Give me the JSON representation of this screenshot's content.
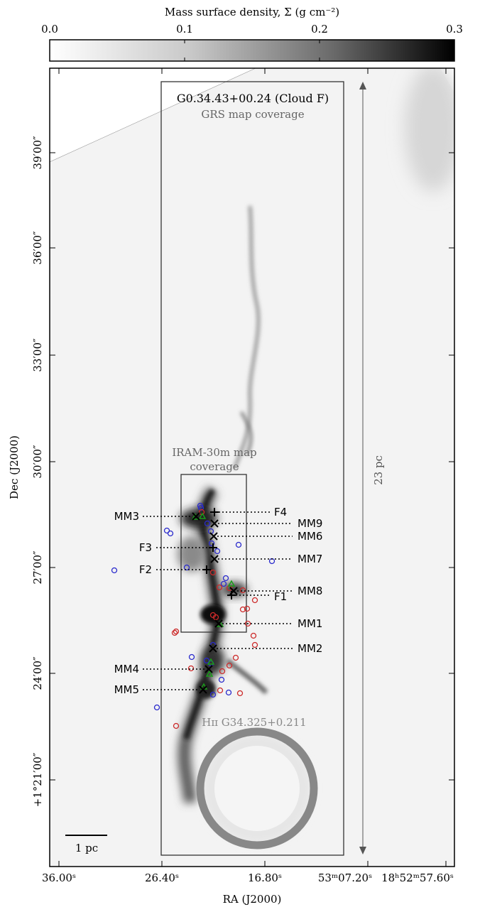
{
  "colorbar": {
    "label": "Mass surface density, Σ (g cm⁻²)",
    "ticks": [
      "0.0",
      "0.1",
      "0.2",
      "0.3"
    ],
    "range": [
      0.0,
      0.3
    ]
  },
  "axes": {
    "xlabel": "RA (J2000)",
    "ylabel": "Dec (J2000)",
    "xticks": [
      "36.00ˢ",
      "26.40ˢ",
      "16.80ˢ",
      "53ᵐ07.20ˢ",
      "18ʰ52ᵐ57.60ˢ"
    ],
    "yticks": [
      "39′00″",
      "36′00″",
      "33′00″",
      "30′00″",
      "27′00″",
      "24′00″",
      "+1°21′00″"
    ]
  },
  "annotations": {
    "cloud_title": "G0.34.43+00.24 (Cloud F)",
    "grs_label": "GRS map coverage",
    "iram_label_1": "IRAM-30m map",
    "iram_label_2": "coverage",
    "scale_23pc": "23 pc",
    "scale_1pc": "1 pc",
    "hii_label": "Hɪɪ G34.325+0.211"
  },
  "chart_data": {
    "type": "image",
    "title": "",
    "xlabel": "RA (J2000)",
    "ylabel": "Dec (J2000)",
    "colorbar": {
      "label": "Mass surface density, Σ (g cm⁻²)",
      "min": 0.0,
      "max": 0.3
    },
    "sources": [
      {
        "name": "MM3",
        "marker": "x"
      },
      {
        "name": "F4",
        "marker": "+"
      },
      {
        "name": "MM9",
        "marker": "x"
      },
      {
        "name": "MM6",
        "marker": "x"
      },
      {
        "name": "F3",
        "marker": "+"
      },
      {
        "name": "MM7",
        "marker": "x"
      },
      {
        "name": "F2",
        "marker": "+"
      },
      {
        "name": "MM8",
        "marker": "x"
      },
      {
        "name": "F1",
        "marker": "+"
      },
      {
        "name": "MM1",
        "marker": "x"
      },
      {
        "name": "MM2",
        "marker": "x"
      },
      {
        "name": "MM4",
        "marker": "x"
      },
      {
        "name": "MM5",
        "marker": "x"
      }
    ]
  }
}
